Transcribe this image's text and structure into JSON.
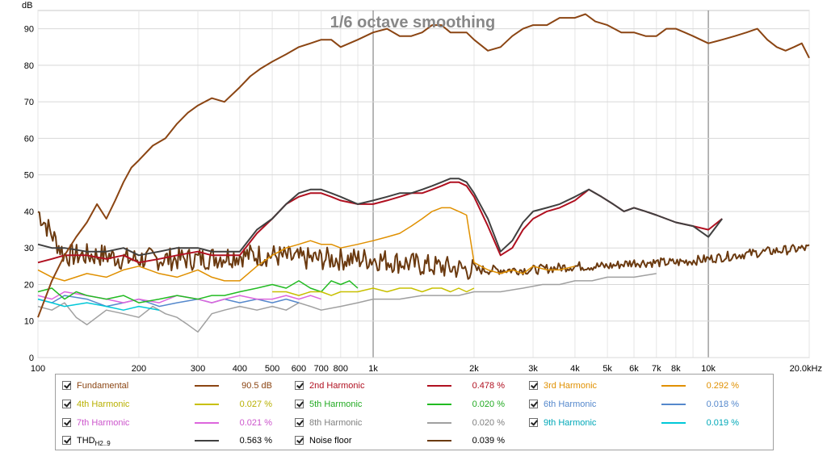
{
  "chart_data": {
    "type": "line",
    "title": "1/6 octave smoothing",
    "ylabel": "dB",
    "xlabel": "",
    "x_scale": "log",
    "xlim": [
      100,
      20000
    ],
    "ylim": [
      0,
      95
    ],
    "grid": true,
    "legend_placement": "bottom",
    "y_ticks": [
      0,
      10,
      20,
      30,
      40,
      50,
      60,
      70,
      80,
      90
    ],
    "x_ticks": [
      {
        "value": 100,
        "label": "100"
      },
      {
        "value": 200,
        "label": "200"
      },
      {
        "value": 300,
        "label": "300"
      },
      {
        "value": 400,
        "label": "400"
      },
      {
        "value": 500,
        "label": "500"
      },
      {
        "value": 600,
        "label": "600"
      },
      {
        "value": 700,
        "label": "700"
      },
      {
        "value": 800,
        "label": "800"
      },
      {
        "value": 1000,
        "label": "1k"
      },
      {
        "value": 2000,
        "label": "2k"
      },
      {
        "value": 3000,
        "label": "3k"
      },
      {
        "value": 4000,
        "label": "4k"
      },
      {
        "value": 5000,
        "label": "5k"
      },
      {
        "value": 6000,
        "label": "6k"
      },
      {
        "value": 7000,
        "label": "7k"
      },
      {
        "value": 8000,
        "label": "8k"
      },
      {
        "value": 10000,
        "label": "10k"
      },
      {
        "value": 20000,
        "label": "20.0kHz"
      }
    ],
    "series": [
      {
        "name": "Fundamental",
        "color": "#8b4513",
        "value": "90.5 dB",
        "x": [
          100,
          110,
          120,
          130,
          140,
          150,
          160,
          170,
          180,
          190,
          200,
          220,
          240,
          260,
          280,
          300,
          330,
          360,
          400,
          430,
          460,
          500,
          550,
          600,
          650,
          700,
          750,
          800,
          900,
          1000,
          1100,
          1200,
          1300,
          1400,
          1500,
          1600,
          1700,
          1800,
          1900,
          2000,
          2200,
          2400,
          2600,
          2800,
          3000,
          3300,
          3600,
          4000,
          4300,
          4600,
          5000,
          5500,
          6000,
          6500,
          7000,
          7500,
          8000,
          8500,
          9000,
          10000,
          11000,
          12000,
          13000,
          14000,
          15000,
          16000,
          17000,
          18000,
          19000,
          20000
        ],
        "y": [
          11,
          21,
          28,
          33,
          37,
          42,
          38,
          43,
          48,
          52,
          54,
          58,
          60,
          64,
          67,
          69,
          71,
          70,
          74,
          77,
          79,
          81,
          83,
          85,
          86,
          87,
          87,
          85,
          87,
          89,
          90,
          88,
          88,
          89,
          91,
          91,
          89,
          89,
          89,
          87,
          84,
          85,
          88,
          90,
          91,
          91,
          93,
          93,
          94,
          92,
          91,
          89,
          89,
          88,
          88,
          90,
          90,
          89,
          88,
          86,
          87,
          88,
          89,
          90,
          87,
          85,
          84,
          85,
          86,
          82
        ]
      },
      {
        "name": "2nd Harmonic",
        "color": "#b01020",
        "value": "0.478 %",
        "x": [
          100,
          110,
          120,
          140,
          160,
          180,
          200,
          230,
          260,
          300,
          330,
          360,
          400,
          450,
          500,
          550,
          600,
          650,
          700,
          750,
          800,
          900,
          1000,
          1100,
          1200,
          1300,
          1400,
          1500,
          1600,
          1700,
          1800,
          1900,
          2000,
          2200,
          2400,
          2600,
          2800,
          3000,
          3300,
          3600,
          4000,
          4400,
          4800,
          5200,
          5600,
          6000,
          6500,
          7000,
          8000,
          9000,
          10000,
          11000
        ],
        "y": [
          26,
          27,
          28,
          28,
          27,
          28,
          26,
          27,
          28,
          29,
          28,
          28,
          28,
          34,
          38,
          42,
          44,
          45,
          45,
          44,
          43,
          42,
          42,
          43,
          44,
          45,
          45,
          46,
          47,
          48,
          48,
          47,
          44,
          36,
          28,
          30,
          35,
          38,
          40,
          41,
          43,
          46,
          44,
          42,
          40,
          41,
          40,
          39,
          37,
          36,
          35,
          38
        ]
      },
      {
        "name": "3rd Harmonic",
        "color": "#e09000",
        "value": "0.292 %",
        "x": [
          100,
          110,
          120,
          140,
          160,
          180,
          200,
          230,
          260,
          300,
          330,
          360,
          400,
          450,
          500,
          550,
          600,
          650,
          700,
          750,
          800,
          900,
          1000,
          1100,
          1200,
          1300,
          1400,
          1500,
          1600,
          1700,
          1800,
          1900,
          2000,
          2200,
          2400,
          2600,
          2800,
          3000,
          3300,
          3600,
          4000
        ],
        "y": [
          24,
          22,
          21,
          23,
          22,
          24,
          25,
          23,
          22,
          24,
          22,
          21,
          21,
          25,
          28,
          30,
          31,
          32,
          31,
          31,
          30,
          31,
          32,
          33,
          34,
          36,
          38,
          40,
          41,
          41,
          40,
          39,
          26,
          24,
          23,
          24,
          23,
          25,
          24,
          24,
          25
        ]
      },
      {
        "name": "4th Harmonic",
        "color": "#c8c000",
        "value": "0.027 %",
        "x": [
          500,
          550,
          600,
          650,
          700,
          750,
          800,
          900,
          1000,
          1100,
          1200,
          1300,
          1400,
          1500,
          1600,
          1700,
          1800,
          1900,
          2000
        ],
        "y": [
          18,
          18,
          17,
          18,
          18,
          17,
          18,
          18,
          19,
          18,
          19,
          19,
          18,
          19,
          19,
          18,
          19,
          18,
          19
        ]
      },
      {
        "name": "5th Harmonic",
        "color": "#22bb22",
        "value": "0.020 %",
        "x": [
          100,
          110,
          120,
          130,
          140,
          160,
          180,
          200,
          230,
          260,
          300,
          330,
          360,
          400,
          450,
          500,
          550,
          600,
          650,
          700,
          750,
          800,
          850,
          900
        ],
        "y": [
          18,
          19,
          16,
          18,
          17,
          16,
          17,
          15,
          16,
          17,
          16,
          17,
          17,
          18,
          19,
          20,
          19,
          21,
          19,
          18,
          21,
          20,
          21,
          19
        ]
      },
      {
        "name": "6th Harmonic",
        "color": "#5588cc",
        "value": "0.018 %",
        "x": [
          100,
          110,
          120,
          140,
          160,
          180,
          200,
          230,
          260,
          300,
          330,
          360,
          400,
          450,
          500,
          550,
          600
        ],
        "y": [
          16,
          15,
          17,
          16,
          14,
          15,
          16,
          14,
          15,
          16,
          15,
          16,
          15,
          16,
          15,
          16,
          15
        ]
      },
      {
        "name": "7th Harmonic",
        "color": "#dd66dd",
        "value": "0.021 %",
        "x": [
          100,
          110,
          120,
          140,
          160,
          180,
          200,
          230,
          260,
          300,
          330,
          360,
          400,
          450,
          500,
          550,
          600,
          650,
          700
        ],
        "y": [
          17,
          16,
          18,
          17,
          16,
          15,
          16,
          15,
          17,
          16,
          15,
          16,
          17,
          16,
          16,
          17,
          16,
          17,
          16
        ]
      },
      {
        "name": "8th Harmonic",
        "color": "#a0a0a0",
        "value": "0.020 %",
        "x": [
          100,
          110,
          120,
          130,
          140,
          160,
          180,
          200,
          220,
          240,
          260,
          280,
          300,
          330,
          360,
          400,
          450,
          500,
          550,
          600,
          650,
          700,
          800,
          900,
          1000,
          1200,
          1400,
          1600,
          1800,
          2000,
          2400,
          2800,
          3200,
          3600,
          4000,
          4500,
          5000,
          6000,
          7000
        ],
        "y": [
          14,
          13,
          15,
          11,
          9,
          13,
          12,
          11,
          14,
          12,
          11,
          9,
          7,
          12,
          13,
          14,
          13,
          14,
          13,
          15,
          14,
          13,
          14,
          15,
          16,
          16,
          17,
          17,
          17,
          18,
          18,
          19,
          20,
          20,
          21,
          21,
          22,
          22,
          23
        ]
      },
      {
        "name": "9th Harmonic",
        "color": "#00c8d8",
        "value": "0.019 %",
        "x": [
          100,
          110,
          120,
          140,
          160,
          180,
          200,
          230
        ],
        "y": [
          16,
          15,
          14,
          15,
          14,
          13,
          14,
          13
        ]
      },
      {
        "name": "THD",
        "color": "#404040",
        "value": "0.563 %",
        "x": [
          100,
          110,
          120,
          140,
          160,
          180,
          200,
          230,
          260,
          300,
          330,
          360,
          400,
          450,
          500,
          550,
          600,
          650,
          700,
          750,
          800,
          900,
          1000,
          1100,
          1200,
          1300,
          1400,
          1500,
          1600,
          1700,
          1800,
          1900,
          2000,
          2200,
          2400,
          2600,
          2800,
          3000,
          3300,
          3600,
          4000,
          4400,
          4800,
          5200,
          5600,
          6000,
          6500,
          7000,
          8000,
          9000,
          10000,
          11000
        ],
        "y": [
          31,
          30,
          30,
          29,
          29,
          30,
          28,
          29,
          30,
          30,
          29,
          29,
          29,
          35,
          38,
          42,
          45,
          46,
          46,
          45,
          44,
          42,
          43,
          44,
          45,
          45,
          46,
          47,
          48,
          49,
          49,
          48,
          45,
          38,
          29,
          32,
          37,
          40,
          41,
          42,
          44,
          46,
          44,
          42,
          40,
          41,
          40,
          39,
          37,
          36,
          33,
          38
        ]
      },
      {
        "name": "Noise floor",
        "color": "#6b3a10",
        "value": "0.039 %",
        "x": [
          100,
          120,
          140,
          160,
          180,
          200,
          250,
          300,
          400,
          500,
          600,
          800,
          1000,
          1500,
          2000,
          3000,
          4000,
          5000,
          6000,
          8000,
          10000,
          12000,
          15000,
          20000
        ],
        "y": [
          40,
          28,
          28,
          28,
          27,
          27,
          27,
          27,
          28,
          28,
          27,
          27,
          27,
          25,
          24,
          24,
          25,
          25,
          26,
          26,
          27,
          28,
          29,
          30
        ],
        "noisy": true
      }
    ]
  }
}
